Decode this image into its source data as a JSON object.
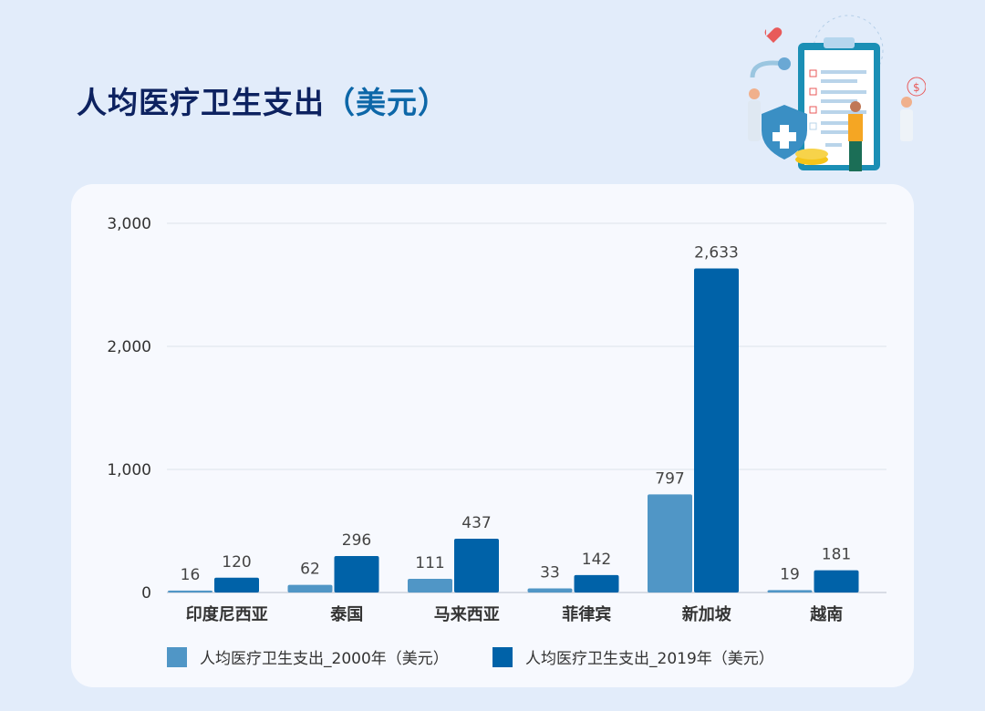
{
  "header": {
    "title": "人均医疗卫生支出",
    "title_unit": "（美元）"
  },
  "chart_data": {
    "type": "bar",
    "categories": [
      "印度尼西亚",
      "泰国",
      "马来西亚",
      "菲律宾",
      "新加坡",
      "越南"
    ],
    "series": [
      {
        "name": "人均医疗卫生支出_2000年（美元）",
        "color": "#5096c6",
        "values": [
          16,
          62,
          111,
          33,
          797,
          19
        ]
      },
      {
        "name": "人均医疗卫生支出_2019年（美元）",
        "color": "#0062a8",
        "values": [
          120,
          296,
          437,
          142,
          2633,
          181
        ]
      }
    ],
    "yticks": [
      "0",
      "1,000",
      "2,000",
      "3,000"
    ],
    "ylim": [
      0,
      3000
    ],
    "grid": true,
    "legend": "bottom",
    "value_labels": [
      [
        "16",
        "62",
        "111",
        "33",
        "797",
        "19"
      ],
      [
        "120",
        "296",
        "437",
        "142",
        "2,633",
        "181"
      ]
    ]
  }
}
